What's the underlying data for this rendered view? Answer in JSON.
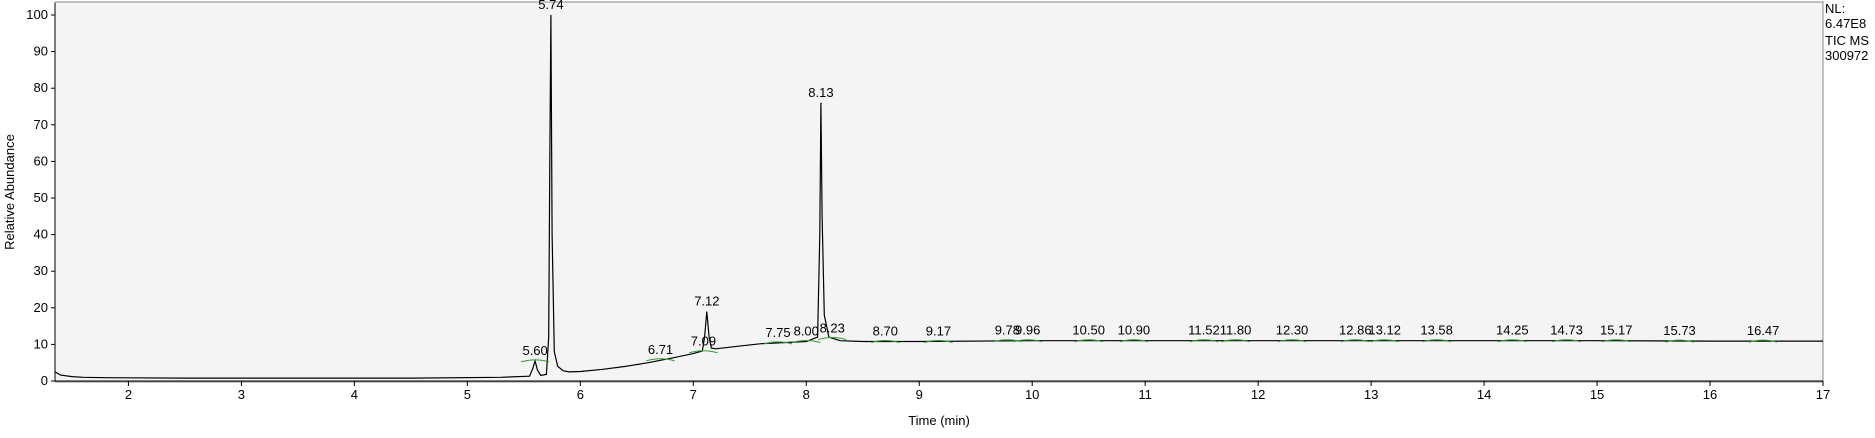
{
  "chart_data": {
    "type": "line",
    "xlabel": "Time (min)",
    "ylabel": "Relative Abundance",
    "xlim": [
      1.35,
      17.0
    ],
    "ylim": [
      0,
      100
    ],
    "x_ticks": [
      2,
      3,
      4,
      5,
      6,
      7,
      8,
      9,
      10,
      11,
      12,
      13,
      14,
      15,
      16,
      17
    ],
    "y_ticks": [
      0,
      10,
      20,
      30,
      40,
      50,
      60,
      70,
      80,
      90,
      100
    ],
    "grid": false,
    "info": [
      "NL:",
      "6.47E8",
      "TIC MS",
      "300972"
    ],
    "colors": {
      "trace": "#000000",
      "baseline": "#2e9e2e",
      "plot_bg": "#f4f4f4"
    },
    "series": [
      {
        "x": [
          1.35,
          1.4,
          1.5,
          1.6,
          1.8,
          2.5,
          3.5,
          4.5,
          5.3,
          5.55,
          5.58,
          5.6,
          5.62,
          5.65,
          5.7,
          5.72,
          5.73,
          5.74,
          5.75,
          5.77,
          5.8,
          5.85,
          5.9,
          6.0,
          6.2,
          6.4,
          6.6,
          6.8,
          7.0,
          7.08,
          7.1,
          7.12,
          7.14,
          7.16,
          7.2,
          7.4,
          7.6,
          7.8,
          8.0,
          8.1,
          8.12,
          8.13,
          8.14,
          8.16,
          8.2,
          8.3,
          8.5,
          9.0,
          10.0,
          11.0,
          12.0,
          13.0,
          14.0,
          15.0,
          16.0,
          17.0
        ],
        "y": [
          2.5,
          1.6,
          1.2,
          1.0,
          0.9,
          0.8,
          0.8,
          0.8,
          1.0,
          1.3,
          3.5,
          5.5,
          3.0,
          1.5,
          1.8,
          12,
          60,
          100,
          40,
          8,
          4,
          2.8,
          2.5,
          2.6,
          3.2,
          4.0,
          5.0,
          6.2,
          7.5,
          8.2,
          12,
          19,
          12,
          9,
          8.8,
          9.5,
          10.2,
          10.5,
          10.8,
          12,
          40,
          76,
          45,
          18,
          12,
          11,
          10.8,
          10.8,
          11.0,
          11.0,
          11.0,
          11.0,
          11.0,
          11.0,
          10.9,
          10.9
        ]
      }
    ],
    "peak_labels": [
      {
        "x": 5.6,
        "y": 5.5,
        "label": "5.60"
      },
      {
        "x": 5.74,
        "y": 100,
        "label": "5.74"
      },
      {
        "x": 6.71,
        "y": 5.8,
        "label": "6.71"
      },
      {
        "x": 7.09,
        "y": 8.0,
        "label": "7.09"
      },
      {
        "x": 7.12,
        "y": 19,
        "label": "7.12"
      },
      {
        "x": 7.75,
        "y": 10.4,
        "label": "7.75"
      },
      {
        "x": 8.0,
        "y": 10.8,
        "label": "8.00"
      },
      {
        "x": 8.13,
        "y": 76,
        "label": "8.13"
      },
      {
        "x": 8.23,
        "y": 11.6,
        "label": "8.23"
      },
      {
        "x": 8.7,
        "y": 10.8,
        "label": "8.70"
      },
      {
        "x": 9.17,
        "y": 10.8,
        "label": "9.17"
      },
      {
        "x": 9.78,
        "y": 11.0,
        "label": "9.78"
      },
      {
        "x": 9.96,
        "y": 11.0,
        "label": "9.96"
      },
      {
        "x": 10.5,
        "y": 11.0,
        "label": "10.50"
      },
      {
        "x": 10.9,
        "y": 11.0,
        "label": "10.90"
      },
      {
        "x": 11.52,
        "y": 11.0,
        "label": "11.52"
      },
      {
        "x": 11.8,
        "y": 11.0,
        "label": "11.80"
      },
      {
        "x": 12.3,
        "y": 11.0,
        "label": "12.30"
      },
      {
        "x": 12.86,
        "y": 11.0,
        "label": "12.86"
      },
      {
        "x": 13.12,
        "y": 11.0,
        "label": "13.12"
      },
      {
        "x": 13.58,
        "y": 11.0,
        "label": "13.58"
      },
      {
        "x": 14.25,
        "y": 11.0,
        "label": "14.25"
      },
      {
        "x": 14.73,
        "y": 11.0,
        "label": "14.73"
      },
      {
        "x": 15.17,
        "y": 11.0,
        "label": "15.17"
      },
      {
        "x": 15.73,
        "y": 10.9,
        "label": "15.73"
      },
      {
        "x": 16.47,
        "y": 10.9,
        "label": "16.47"
      }
    ]
  }
}
